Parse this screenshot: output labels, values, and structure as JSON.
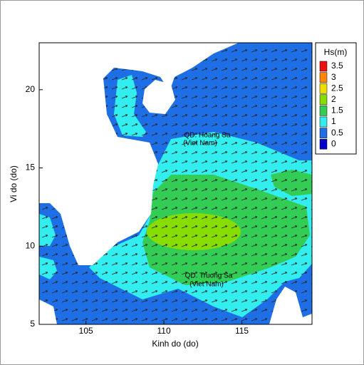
{
  "chart_data": {
    "type": "map",
    "xlabel": "Kinh do (do)",
    "ylabel": "Vi do (do)",
    "xlim": [
      102,
      119.5
    ],
    "ylim": [
      5,
      23
    ],
    "xticks": [
      105,
      110,
      115
    ],
    "yticks": [
      5,
      10,
      15,
      20
    ],
    "colorbar": {
      "title": "Hs(m)",
      "levels": [
        3.5,
        3,
        2.5,
        2,
        1.5,
        1,
        0.5,
        0
      ],
      "colors": [
        "#ee1111",
        "#ff8800",
        "#eedd00",
        "#88dd00",
        "#33cc55",
        "#33eeee",
        "#1e6fe6",
        "#0000cc"
      ]
    },
    "annotations": [
      "QD. Hoang Sa",
      "(Viet Nam)",
      "QD. Truong Sa",
      "(Viet Nam)"
    ]
  }
}
